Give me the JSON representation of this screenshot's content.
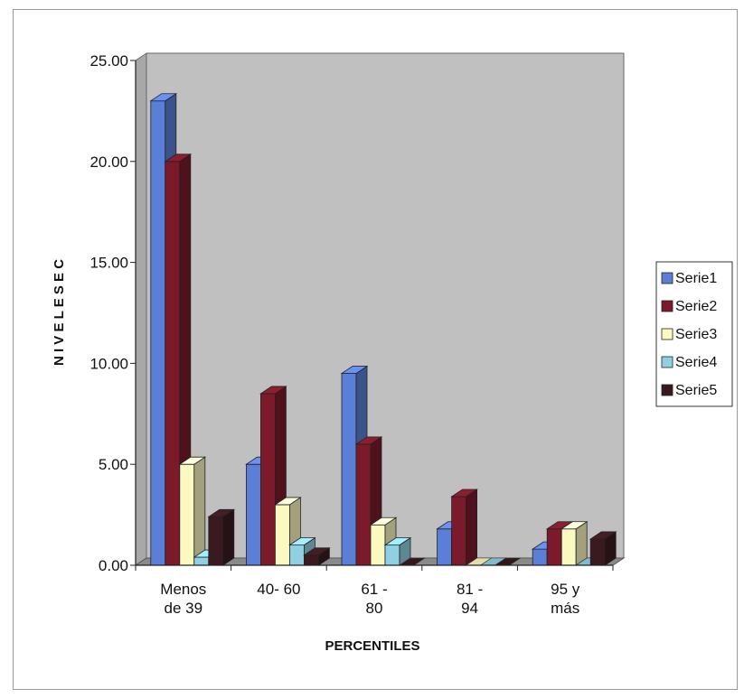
{
  "chart_data": {
    "type": "bar",
    "title": "",
    "xlabel": "PERCENTILES",
    "ylabel": "N I V E L E S  E C",
    "ylim": [
      0,
      25
    ],
    "yticks": [
      "0.00",
      "5.00",
      "10.00",
      "15.00",
      "20.00",
      "25.00"
    ],
    "categories": [
      [
        "Menos",
        "de 39"
      ],
      [
        "40- 60"
      ],
      [
        "61 -",
        "80"
      ],
      [
        "81 -",
        "94"
      ],
      [
        "95 y",
        "más"
      ]
    ],
    "series": [
      {
        "name": "Serie1",
        "color": "#5b7fd6",
        "values": [
          23.0,
          5.0,
          9.5,
          1.8,
          0.8
        ]
      },
      {
        "name": "Serie2",
        "color": "#7a1a2a",
        "values": [
          20.0,
          8.5,
          6.0,
          3.4,
          1.8
        ]
      },
      {
        "name": "Serie3",
        "color": "#fbf8c0",
        "values": [
          5.0,
          3.0,
          2.0,
          0.0,
          1.8
        ]
      },
      {
        "name": "Serie4",
        "color": "#8fd0e2",
        "values": [
          0.4,
          1.0,
          1.0,
          0.0,
          0.0
        ]
      },
      {
        "name": "Serie5",
        "color": "#3a1a1e",
        "values": [
          2.4,
          0.5,
          0.0,
          0.0,
          1.3
        ]
      }
    ],
    "grid": false,
    "legend": "right",
    "depth_3d": true,
    "wall_color": "#c0c0c0"
  }
}
